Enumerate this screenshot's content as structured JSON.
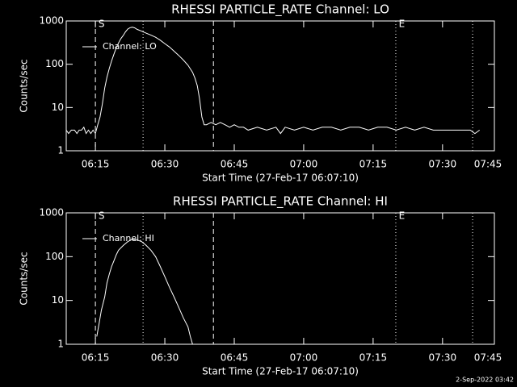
{
  "chart_data": [
    {
      "type": "line",
      "title": "RHESSI PARTICLE_RATE Channel: LO",
      "xlabel": "Start Time (27-Feb-17 06:07:10)",
      "ylabel": "Counts/sec",
      "x": [
        8.7,
        9.2,
        9.8,
        10.5,
        11,
        11.5,
        12,
        12.5,
        13,
        13.5,
        14,
        14.5,
        15,
        15.5,
        16,
        16.5,
        17,
        17.5,
        18,
        18.5,
        19,
        19.5,
        20,
        20.5,
        21,
        21.5,
        22,
        22.5,
        23,
        23.5,
        24,
        25,
        26,
        27,
        28,
        29,
        30,
        31,
        32,
        33,
        34,
        35,
        36,
        36.5,
        37,
        37.5,
        38,
        38.5,
        39,
        40,
        41,
        42,
        43,
        44,
        45,
        46,
        47,
        48,
        50,
        52,
        54,
        55,
        56,
        58,
        60,
        62,
        64,
        66,
        68,
        70,
        72,
        74,
        76,
        78,
        80,
        82,
        84,
        86,
        88,
        90,
        92,
        94,
        96,
        97,
        98
      ],
      "series": [
        {
          "name": "Channel: LO",
          "color": "#ffffff",
          "values": [
            3,
            2.5,
            3,
            3,
            2.5,
            3,
            3,
            3.5,
            2.5,
            3,
            2.5,
            3,
            2.5,
            4,
            6,
            12,
            28,
            50,
            80,
            120,
            170,
            240,
            310,
            390,
            460,
            560,
            650,
            700,
            720,
            690,
            640,
            580,
            520,
            470,
            420,
            360,
            300,
            250,
            200,
            160,
            125,
            95,
            65,
            48,
            32,
            16,
            6,
            4,
            4,
            4.5,
            4,
            4.5,
            4,
            3.5,
            4,
            3.5,
            3.5,
            3,
            3.5,
            3,
            3.5,
            2.5,
            3.5,
            3,
            3.5,
            3,
            3.5,
            3.5,
            3,
            3.5,
            3.5,
            3,
            3.5,
            3.5,
            3,
            3.5,
            3,
            3.5,
            3,
            3,
            3,
            3,
            3,
            2.5,
            3
          ]
        }
      ],
      "xlim": [
        8.7,
        101.2
      ],
      "ylim": [
        1,
        1000
      ],
      "ylog": true,
      "xticks": [
        {
          "value": 15,
          "label": "06:15"
        },
        {
          "value": 30,
          "label": "06:30"
        },
        {
          "value": 45,
          "label": "06:45"
        },
        {
          "value": 60,
          "label": "07:00"
        },
        {
          "value": 75,
          "label": "07:15"
        },
        {
          "value": 90,
          "label": "07:30"
        },
        {
          "value": 105,
          "label": "07:45"
        }
      ],
      "yticks": [
        1,
        10,
        100,
        1000
      ],
      "vlines": [
        {
          "x": 15,
          "style": "dashed"
        },
        {
          "x": 25.3,
          "style": "dotted"
        },
        {
          "x": 40.5,
          "style": "dashed"
        },
        {
          "x": 79.9,
          "style": "dotted"
        },
        {
          "x": 96.5,
          "style": "dotted"
        }
      ],
      "annotations": [
        {
          "text": "S",
          "x": 15.3
        },
        {
          "text": "E",
          "x": 80.2
        }
      ]
    },
    {
      "type": "line",
      "title": "RHESSI PARTICLE_RATE Channel: HI",
      "xlabel": "Start Time (27-Feb-17 06:07:10)",
      "ylabel": "Counts/sec",
      "x": [
        15.3,
        15.8,
        16.3,
        17,
        17.5,
        18,
        18.5,
        19,
        19.5,
        20,
        21,
        22,
        23,
        24,
        25,
        26,
        27,
        28,
        29,
        30,
        31,
        32,
        33,
        34,
        35,
        35.5,
        36
      ],
      "series": [
        {
          "name": "Channel: HI",
          "color": "#ffffff",
          "values": [
            1.5,
            3,
            6,
            12,
            25,
            40,
            60,
            80,
            110,
            140,
            180,
            220,
            250,
            240,
            220,
            180,
            140,
            100,
            60,
            35,
            20,
            12,
            7,
            4,
            2.5,
            1.5,
            1
          ]
        }
      ],
      "xlim": [
        8.7,
        101.2
      ],
      "ylim": [
        1,
        1000
      ],
      "ylog": true,
      "xticks": [
        {
          "value": 15,
          "label": "06:15"
        },
        {
          "value": 30,
          "label": "06:30"
        },
        {
          "value": 45,
          "label": "06:45"
        },
        {
          "value": 60,
          "label": "07:00"
        },
        {
          "value": 75,
          "label": "07:15"
        },
        {
          "value": 90,
          "label": "07:30"
        },
        {
          "value": 105,
          "label": "07:45"
        }
      ],
      "yticks": [
        1,
        10,
        100,
        1000
      ],
      "vlines": [
        {
          "x": 15,
          "style": "dashed"
        },
        {
          "x": 25.3,
          "style": "dotted"
        },
        {
          "x": 40.5,
          "style": "dashed"
        },
        {
          "x": 79.9,
          "style": "dotted"
        },
        {
          "x": 96.5,
          "style": "dotted"
        }
      ],
      "annotations": [
        {
          "text": "S",
          "x": 15.3
        },
        {
          "text": "E",
          "x": 80.2
        }
      ]
    }
  ],
  "footer": "2-Sep-2022 03:42"
}
